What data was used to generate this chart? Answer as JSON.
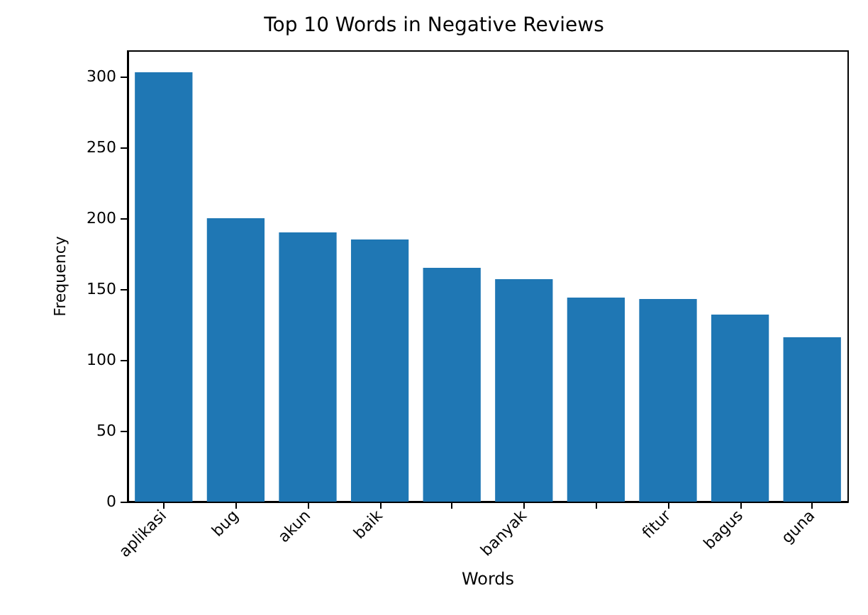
{
  "chart_data": {
    "type": "bar",
    "title": "Top 10 Words in Negative Reviews",
    "xlabel": "Words",
    "ylabel": "Frequency",
    "categories": [
      "aplikasi",
      "bug",
      "akun",
      "baik",
      null,
      "banyak",
      null,
      "fitur",
      "bagus",
      "guna"
    ],
    "values": [
      303,
      200,
      190,
      185,
      165,
      157,
      144,
      143,
      132,
      116
    ],
    "color": "#1f77b4",
    "ylim": [
      0,
      318
    ],
    "yticks": [
      0,
      50,
      100,
      150,
      200,
      250,
      300
    ],
    "grid": false
  }
}
